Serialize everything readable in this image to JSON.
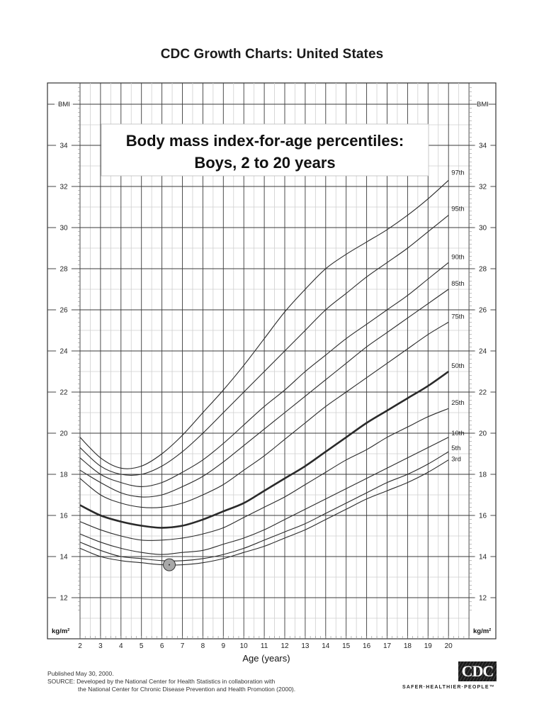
{
  "page": {
    "title": "CDC Growth Charts: United States"
  },
  "chart_box": {
    "title_line1": "Body mass index-for-age percentiles:",
    "title_line2": "Boys, 2 to 20 years"
  },
  "axes": {
    "left_label": "BMI",
    "right_label": "BMI",
    "unit_left": "kg/m²",
    "unit_right": "kg/m²",
    "xlabel": "Age (years)"
  },
  "footer": {
    "published": "Published May 30, 2000.",
    "source_line1": "SOURCE: Developed by the National Center for Health Statistics in collaboration with",
    "source_line2": "the National Center for Chronic Disease Prevention and Health Promotion (2000)."
  },
  "logo": {
    "text": "CDC",
    "tagline": "SAFER·HEALTHIER·PEOPLE™"
  },
  "colors": {
    "grid_major": "#3a3a3a",
    "grid_minor": "#cfcfcf",
    "curve": "#2a2a2a",
    "marker_fill": "#a8a8a8",
    "marker_stroke": "#333333"
  },
  "chart_data": {
    "type": "line",
    "title": "Body mass index-for-age percentiles: Boys, 2 to 20 years",
    "xlabel": "Age (years)",
    "ylabel": "BMI (kg/m²)",
    "xlim": [
      2,
      20
    ],
    "ylim": [
      12,
      36
    ],
    "x_ticks": [
      2,
      3,
      4,
      5,
      6,
      7,
      8,
      9,
      10,
      11,
      12,
      13,
      14,
      15,
      16,
      17,
      18,
      19,
      20
    ],
    "y_ticks": [
      12,
      14,
      16,
      18,
      20,
      22,
      24,
      26,
      28,
      30,
      32,
      34
    ],
    "grid": true,
    "legend_position": "right end labels",
    "x": [
      2,
      3,
      4,
      5,
      6,
      7,
      8,
      9,
      10,
      11,
      12,
      13,
      14,
      15,
      16,
      17,
      18,
      19,
      20
    ],
    "series": [
      {
        "name": "97th",
        "bold": false,
        "values": [
          19.8,
          18.8,
          18.3,
          18.4,
          19.0,
          19.9,
          21.0,
          22.1,
          23.3,
          24.6,
          25.9,
          27.0,
          28.0,
          28.7,
          29.3,
          29.9,
          30.6,
          31.4,
          32.3
        ]
      },
      {
        "name": "95th",
        "bold": false,
        "values": [
          19.3,
          18.4,
          18.0,
          18.0,
          18.4,
          19.1,
          20.0,
          21.0,
          22.0,
          23.0,
          24.0,
          25.0,
          26.0,
          26.8,
          27.6,
          28.3,
          29.0,
          29.8,
          30.6
        ]
      },
      {
        "name": "90th",
        "bold": false,
        "values": [
          18.8,
          18.0,
          17.6,
          17.4,
          17.6,
          18.1,
          18.7,
          19.5,
          20.4,
          21.3,
          22.1,
          23.0,
          23.8,
          24.6,
          25.3,
          26.0,
          26.7,
          27.5,
          28.3
        ]
      },
      {
        "name": "85th",
        "bold": false,
        "values": [
          18.2,
          17.6,
          17.1,
          16.9,
          17.0,
          17.4,
          17.9,
          18.6,
          19.4,
          20.2,
          21.0,
          21.8,
          22.6,
          23.4,
          24.2,
          24.9,
          25.6,
          26.3,
          27.0
        ]
      },
      {
        "name": "75th",
        "bold": false,
        "values": [
          17.8,
          17.0,
          16.6,
          16.4,
          16.4,
          16.6,
          17.0,
          17.5,
          18.2,
          18.9,
          19.7,
          20.5,
          21.3,
          22.0,
          22.7,
          23.4,
          24.1,
          24.8,
          25.4
        ]
      },
      {
        "name": "50th",
        "bold": true,
        "values": [
          16.5,
          16.0,
          15.7,
          15.5,
          15.4,
          15.5,
          15.8,
          16.2,
          16.6,
          17.2,
          17.8,
          18.4,
          19.1,
          19.8,
          20.5,
          21.1,
          21.7,
          22.3,
          23.0
        ]
      },
      {
        "name": "25th",
        "bold": false,
        "values": [
          15.7,
          15.3,
          15.0,
          14.8,
          14.8,
          14.9,
          15.1,
          15.4,
          15.9,
          16.4,
          16.9,
          17.5,
          18.1,
          18.7,
          19.2,
          19.8,
          20.3,
          20.8,
          21.2
        ]
      },
      {
        "name": "10th",
        "bold": false,
        "values": [
          15.1,
          14.7,
          14.4,
          14.2,
          14.1,
          14.2,
          14.3,
          14.6,
          14.9,
          15.3,
          15.8,
          16.3,
          16.8,
          17.3,
          17.8,
          18.3,
          18.8,
          19.3,
          19.8
        ]
      },
      {
        "name": "5th",
        "bold": false,
        "values": [
          14.7,
          14.3,
          14.0,
          13.9,
          13.8,
          13.8,
          13.9,
          14.1,
          14.4,
          14.8,
          15.2,
          15.6,
          16.1,
          16.6,
          17.1,
          17.6,
          18.0,
          18.5,
          19.1
        ]
      },
      {
        "name": "3rd",
        "bold": false,
        "values": [
          14.4,
          14.0,
          13.8,
          13.7,
          13.6,
          13.6,
          13.7,
          13.9,
          14.2,
          14.5,
          14.9,
          15.3,
          15.8,
          16.3,
          16.8,
          17.2,
          17.6,
          18.1,
          18.7
        ]
      }
    ],
    "annotations": [
      {
        "type": "marker",
        "shape": "circle",
        "x": 6.36,
        "y": 13.6
      }
    ]
  }
}
